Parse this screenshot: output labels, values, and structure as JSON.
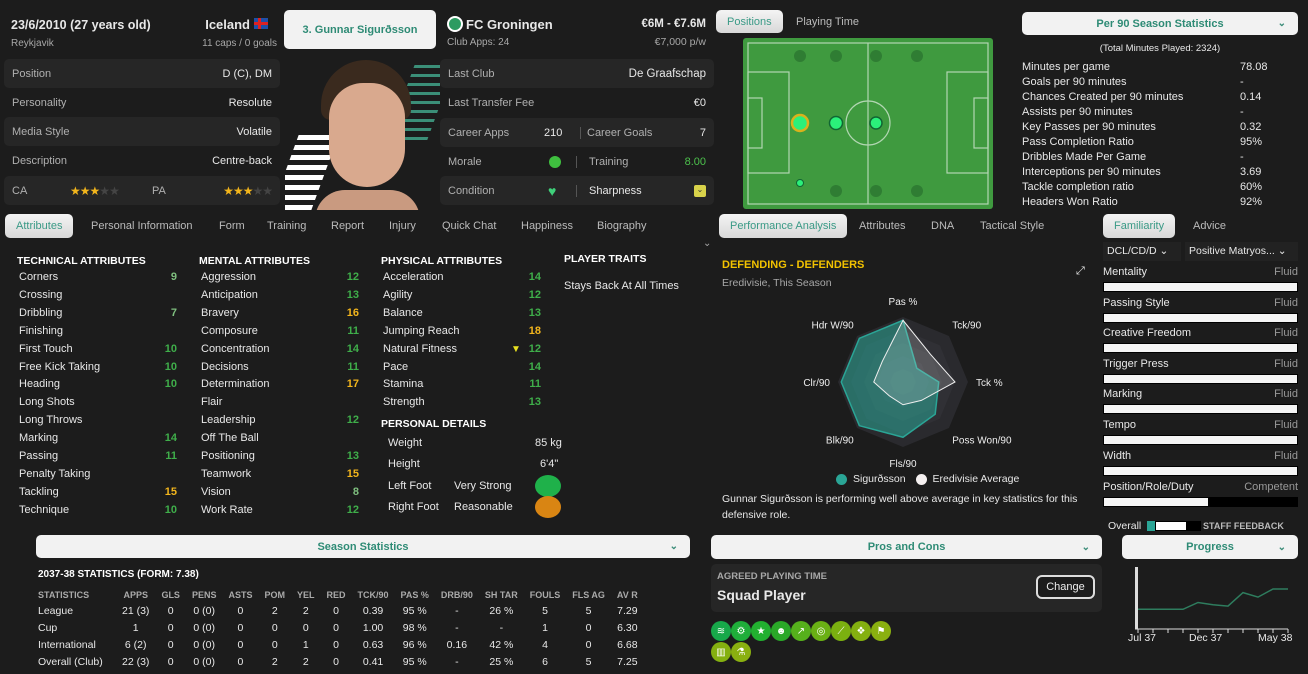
{
  "header": {
    "dob": "23/6/2010 (27 years old)",
    "birthplace": "Reykjavik",
    "nation": "Iceland",
    "caps": "11 caps / 0 goals",
    "player_name": "3. Gunnar Sigurðsson",
    "club": "FC Groningen",
    "club_apps": "Club Apps: 24",
    "value": "€6M - €7.6M",
    "wage": "€7,000 p/w"
  },
  "info_left": [
    {
      "label": "Position",
      "value": "D (C), DM"
    },
    {
      "label": "Personality",
      "value": "Resolute"
    },
    {
      "label": "Media Style",
      "value": "Volatile"
    },
    {
      "label": "Description",
      "value": "Centre-back"
    }
  ],
  "ability": {
    "ca_label": "CA",
    "pa_label": "PA",
    "ca_stars": 3,
    "pa_stars": 3,
    "max_stars": 5
  },
  "info_right": {
    "last_club_label": "Last Club",
    "last_club": "De Graafschap",
    "fee_label": "Last Transfer Fee",
    "fee": "€0",
    "apps_label": "Career Apps",
    "apps": "210",
    "goals_label": "Career Goals",
    "goals": "7",
    "morale_label": "Morale",
    "training_label": "Training",
    "training": "8.00",
    "condition_label": "Condition",
    "sharpness_label": "Sharpness"
  },
  "tabs": [
    "Attributes",
    "Personal Information",
    "Form",
    "Training",
    "Report",
    "Injury",
    "Quick Chat",
    "Happiness",
    "Biography"
  ],
  "attributes": {
    "technical_title": "TECHNICAL ATTRIBUTES",
    "mental_title": "MENTAL ATTRIBUTES",
    "physical_title": "PHYSICAL ATTRIBUTES",
    "traits_title": "PLAYER TRAITS",
    "technical": [
      [
        "Corners",
        "9"
      ],
      [
        "Crossing",
        ""
      ],
      [
        "Dribbling",
        "7"
      ],
      [
        "Finishing",
        ""
      ],
      [
        "First Touch",
        "10"
      ],
      [
        "Free Kick Taking",
        "10"
      ],
      [
        "Heading",
        "10"
      ],
      [
        "Long Shots",
        ""
      ],
      [
        "Long Throws",
        ""
      ],
      [
        "Marking",
        "14"
      ],
      [
        "Passing",
        "11"
      ],
      [
        "Penalty Taking",
        ""
      ],
      [
        "Tackling",
        "15"
      ],
      [
        "Technique",
        "10"
      ]
    ],
    "mental": [
      [
        "Aggression",
        "12"
      ],
      [
        "Anticipation",
        "13"
      ],
      [
        "Bravery",
        "16"
      ],
      [
        "Composure",
        "11"
      ],
      [
        "Concentration",
        "14"
      ],
      [
        "Decisions",
        "11"
      ],
      [
        "Determination",
        "17"
      ],
      [
        "Flair",
        ""
      ],
      [
        "Leadership",
        "12"
      ],
      [
        "Off The Ball",
        ""
      ],
      [
        "Positioning",
        "13"
      ],
      [
        "Teamwork",
        "15"
      ],
      [
        "Vision",
        "8"
      ],
      [
        "Work Rate",
        "12"
      ]
    ],
    "physical": [
      [
        "Acceleration",
        "14"
      ],
      [
        "Agility",
        "12"
      ],
      [
        "Balance",
        "13"
      ],
      [
        "Jumping Reach",
        "18"
      ],
      [
        "Natural Fitness",
        "12"
      ],
      [
        "Pace",
        "14"
      ],
      [
        "Stamina",
        "11"
      ],
      [
        "Strength",
        "13"
      ]
    ],
    "traits": [
      "Stays Back At All Times"
    ]
  },
  "personal": {
    "title": "PERSONAL DETAILS",
    "weight_label": "Weight",
    "weight": "85 kg",
    "height_label": "Height",
    "height": "6'4\"",
    "left_label": "Left Foot",
    "left": "Very Strong",
    "right_label": "Right Foot",
    "right": "Reasonable"
  },
  "season": {
    "bar": "Season Statistics",
    "title": "2037-38 STATISTICS (FORM: 7.38)",
    "columns": [
      "STATISTICS",
      "APPS",
      "GLS",
      "PENS",
      "ASTS",
      "POM",
      "YEL",
      "RED",
      "TCK/90",
      "PAS %",
      "DRB/90",
      "SH TAR",
      "FOULS",
      "FLS AG",
      "AV R"
    ],
    "rows": [
      [
        "League",
        "21 (3)",
        "0",
        "0 (0)",
        "0",
        "2",
        "2",
        "0",
        "0.39",
        "95 %",
        "-",
        "26 %",
        "5",
        "5",
        "7.29"
      ],
      [
        "Cup",
        "1",
        "0",
        "0 (0)",
        "0",
        "0",
        "0",
        "0",
        "1.00",
        "98 %",
        "-",
        "-",
        "1",
        "0",
        "6.30"
      ],
      [
        "International",
        "6 (2)",
        "0",
        "0 (0)",
        "0",
        "0",
        "1",
        "0",
        "0.63",
        "96 %",
        "0.16",
        "42 %",
        "4",
        "0",
        "6.68"
      ],
      [
        "Overall (Club)",
        "22 (3)",
        "0",
        "0 (0)",
        "0",
        "2",
        "2",
        "0",
        "0.41",
        "95 %",
        "-",
        "25 %",
        "6",
        "5",
        "7.25"
      ]
    ]
  },
  "pitch_tabs": [
    "Positions",
    "Playing Time"
  ],
  "per90": {
    "title": "Per 90 Season Statistics",
    "total": "(Total Minutes Played: 2324)",
    "rows": [
      [
        "Minutes per game",
        "78.08"
      ],
      [
        "Goals per 90 minutes",
        "-"
      ],
      [
        "Chances Created per 90 minutes",
        "0.14"
      ],
      [
        "Assists per 90 minutes",
        "-"
      ],
      [
        "Key Passes per 90 minutes",
        "0.32"
      ],
      [
        "Pass Completion Ratio",
        "95%"
      ],
      [
        "Dribbles Made Per Game",
        "-"
      ],
      [
        "Interceptions per 90 minutes",
        "3.69"
      ],
      [
        "Tackle completion ratio",
        "60%"
      ],
      [
        "Headers Won Ratio",
        "92%"
      ]
    ]
  },
  "analysis_tabs": [
    "Performance Analysis",
    "Attributes",
    "DNA",
    "Tactical Style"
  ],
  "radar": {
    "title": "DEFENDING - DEFENDERS",
    "subtitle": "Eredivisie, This Season",
    "axes": [
      "Pas %",
      "Tck/90",
      "Tck %",
      "Poss Won/90",
      "Fls/90",
      "Blk/90",
      "Clr/90",
      "Hdr W/90"
    ],
    "series": [
      {
        "name": "Sigurðsson",
        "color": "#2aa596",
        "values": [
          0.95,
          0.3,
          0.55,
          0.7,
          0.85,
          0.95,
          0.95,
          0.95
        ]
      },
      {
        "name": "Eredivisie Average",
        "color": "#f0f0f0",
        "values": [
          0.95,
          0.6,
          0.8,
          0.4,
          0.35,
          0.3,
          0.45,
          0.45
        ]
      }
    ],
    "summary": "Gunnar Sigurðsson is performing well above average in key statistics for this defensive role."
  },
  "familiarity": {
    "tabs": [
      "Familiarity",
      "Advice"
    ],
    "position": "DCL/CD/D",
    "tactic": "Positive Matryos...",
    "items": [
      [
        "Mentality",
        "Fluid",
        1
      ],
      [
        "Passing Style",
        "Fluid",
        1
      ],
      [
        "Creative Freedom",
        "Fluid",
        1
      ],
      [
        "Trigger Press",
        "Fluid",
        1
      ],
      [
        "Marking",
        "Fluid",
        1
      ],
      [
        "Tempo",
        "Fluid",
        1
      ],
      [
        "Width",
        "Fluid",
        1
      ]
    ],
    "prd_label": "Position/Role/Duty",
    "prd": "Competent",
    "prd_level": 0.54,
    "overall": "Overall",
    "staff": "STAFF FEEDBACK"
  },
  "pros": {
    "bar": "Pros and Cons",
    "agreed_label": "AGREED PLAYING TIME",
    "agreed": "Squad Player",
    "change": "Change"
  },
  "progress": {
    "bar": "Progress",
    "ticks": [
      "Jul 37",
      "Dec 37",
      "May 38"
    ],
    "values": [
      0.35,
      0.35,
      0.35,
      0.35,
      0.5,
      0.45,
      0.42,
      0.72,
      0.62,
      0.8,
      0.8
    ]
  },
  "colors": {
    "accent": "#2e8b75",
    "high": "#f2b51c",
    "mid": "#3fae4a",
    "pitch": "#3d9a3d"
  }
}
